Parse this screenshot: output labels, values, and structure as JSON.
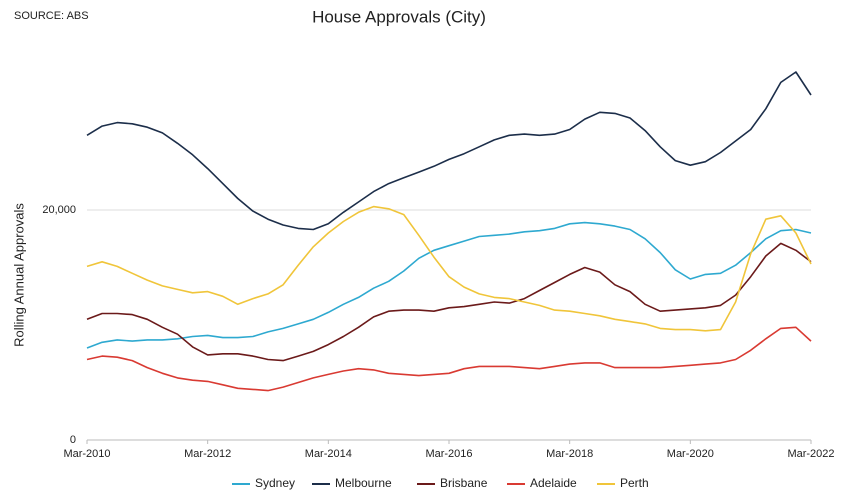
{
  "chart_data": {
    "type": "line",
    "title": "House Approvals (City)",
    "source": "SOURCE: ABS",
    "y_label": "Rolling Annual Approvals",
    "categories": [
      "Mar-2010",
      null,
      null,
      null,
      null,
      null,
      null,
      null,
      "Mar-2012",
      null,
      null,
      null,
      null,
      null,
      null,
      null,
      "Mar-2014",
      null,
      null,
      null,
      null,
      null,
      null,
      null,
      "Mar-2016",
      null,
      null,
      null,
      null,
      null,
      null,
      null,
      "Mar-2018",
      null,
      null,
      null,
      null,
      null,
      null,
      null,
      "Mar-2020",
      null,
      null,
      null,
      null,
      null,
      null,
      null,
      "Mar-2022"
    ],
    "ylim": [
      0,
      35000
    ],
    "yticks": [
      0,
      {
        "value": 20000,
        "label": "20,000"
      }
    ],
    "grid": true,
    "legend": "bottom",
    "series": [
      {
        "name": "Sydney",
        "color": "#2ea9d0",
        "values": [
          8000,
          8500,
          8700,
          8600,
          8700,
          8700,
          8800,
          9000,
          9100,
          8900,
          8900,
          9000,
          9400,
          9700,
          10100,
          10500,
          11100,
          11800,
          12400,
          13200,
          13800,
          14700,
          15800,
          16500,
          16900,
          17300,
          17700,
          17800,
          17900,
          18100,
          18200,
          18400,
          18800,
          18900,
          18800,
          18600,
          18300,
          17500,
          16300,
          14800,
          14000,
          14400,
          14500,
          15200,
          16300,
          17500,
          18200,
          18300,
          18000
        ]
      },
      {
        "name": "Melbourne",
        "color": "#1c2e4a",
        "values": [
          26500,
          27300,
          27600,
          27500,
          27200,
          26700,
          25800,
          24800,
          23600,
          22300,
          21000,
          19900,
          19200,
          18700,
          18400,
          18300,
          18800,
          19800,
          20700,
          21600,
          22300,
          22800,
          23300,
          23800,
          24400,
          24900,
          25500,
          26100,
          26500,
          26600,
          26500,
          26600,
          27000,
          27900,
          28500,
          28400,
          28000,
          26900,
          25500,
          24300,
          23900,
          24200,
          25000,
          26000,
          27000,
          28800,
          31100,
          32000,
          30000
        ]
      },
      {
        "name": "Brisbane",
        "color": "#6b1a1a",
        "values": [
          10500,
          11000,
          11000,
          10900,
          10500,
          9800,
          9200,
          8100,
          7400,
          7500,
          7500,
          7300,
          7000,
          6900,
          7300,
          7700,
          8300,
          9000,
          9800,
          10700,
          11200,
          11300,
          11300,
          11200,
          11500,
          11600,
          11800,
          12000,
          11900,
          12300,
          13000,
          13700,
          14400,
          15000,
          14600,
          13500,
          12900,
          11800,
          11200,
          11300,
          11400,
          11500,
          11700,
          12600,
          14200,
          16000,
          17100,
          16500,
          15500
        ]
      },
      {
        "name": "Adelaide",
        "color": "#d93a32",
        "values": [
          7000,
          7300,
          7200,
          6900,
          6300,
          5800,
          5400,
          5200,
          5100,
          4800,
          4500,
          4400,
          4300,
          4600,
          5000,
          5400,
          5700,
          6000,
          6200,
          6100,
          5800,
          5700,
          5600,
          5700,
          5800,
          6200,
          6400,
          6400,
          6400,
          6300,
          6200,
          6400,
          6600,
          6700,
          6700,
          6300,
          6300,
          6300,
          6300,
          6400,
          6500,
          6600,
          6700,
          7000,
          7800,
          8800,
          9700,
          9800,
          8600
        ]
      },
      {
        "name": "Perth",
        "color": "#f0c53a",
        "values": [
          15100,
          15500,
          15100,
          14500,
          13900,
          13400,
          13100,
          12800,
          12900,
          12500,
          11800,
          12300,
          12700,
          13500,
          15200,
          16800,
          18000,
          19000,
          19800,
          20300,
          20100,
          19600,
          17800,
          15900,
          14200,
          13300,
          12700,
          12400,
          12300,
          12000,
          11700,
          11300,
          11200,
          11000,
          10800,
          10500,
          10300,
          10100,
          9700,
          9600,
          9600,
          9500,
          9600,
          12000,
          16200,
          19200,
          19500,
          18000,
          15300
        ]
      }
    ]
  }
}
